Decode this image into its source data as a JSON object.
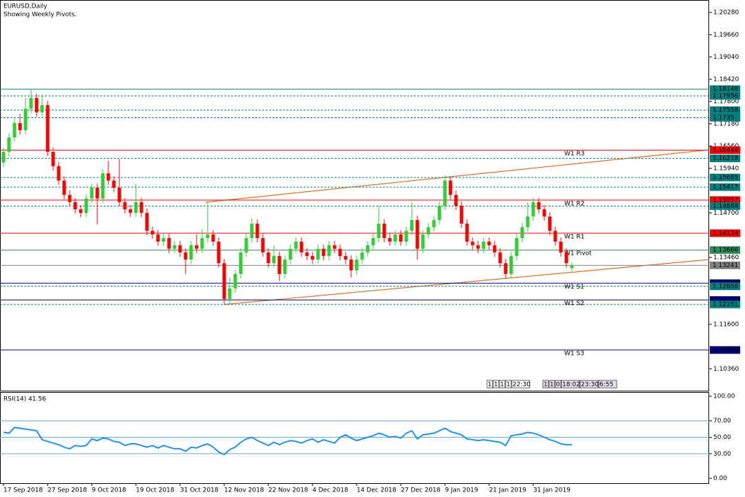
{
  "chart_data": [
    {
      "type": "candlestick",
      "title": "EURUSD,Daily",
      "subtitle": "Showing Weekly Pivots.",
      "categories": [
        "17 Sep 2018",
        null,
        null,
        null,
        null,
        null,
        null,
        null,
        "27 Sep 2018",
        null,
        null,
        null,
        null,
        null,
        null,
        null,
        "9 Oct 2018",
        null,
        null,
        null,
        null,
        null,
        null,
        null,
        "19 Oct 2018",
        null,
        null,
        null,
        null,
        null,
        null,
        null,
        "31 Oct 2018",
        null,
        null,
        null,
        null,
        null,
        null,
        null,
        "12 Nov 2018",
        null,
        null,
        null,
        null,
        null,
        null,
        null,
        "22 Nov 2018",
        null,
        null,
        null,
        null,
        null,
        null,
        null,
        "4 Dec 2018",
        null,
        null,
        null,
        null,
        null,
        null,
        null,
        "14 Dec 2018",
        null,
        null,
        null,
        null,
        null,
        null,
        null,
        "27 Dec 2018",
        null,
        null,
        null,
        null,
        null,
        null,
        null,
        "9 Jan 2019",
        null,
        null,
        null,
        null,
        null,
        null,
        null,
        "21 Jan 2019",
        null,
        null,
        null,
        null,
        null,
        null,
        null,
        "31 Jan 2019",
        null,
        null,
        null,
        null,
        null,
        null,
        null
      ],
      "open": [
        1.161,
        1.164,
        1.168,
        1.172,
        1.17,
        1.176,
        1.179,
        1.175,
        1.177,
        1.164,
        1.16,
        1.156,
        1.152,
        1.15,
        1.148,
        1.147,
        1.151,
        1.154,
        1.151,
        1.158,
        1.156,
        1.154,
        1.15,
        1.148,
        1.147,
        1.15,
        1.147,
        1.142,
        1.141,
        1.139,
        1.14,
        1.137,
        1.138,
        1.136,
        1.134,
        1.138,
        1.137,
        1.14,
        1.141,
        1.139,
        1.133,
        1.123,
        1.126,
        1.13,
        1.136,
        1.14,
        1.144,
        1.14,
        1.136,
        1.133,
        1.135,
        1.13,
        1.134,
        1.137,
        1.139,
        1.136,
        1.135,
        1.134,
        1.137,
        1.135,
        1.138,
        1.137,
        1.135,
        1.134,
        1.131,
        1.134,
        1.136,
        1.138,
        1.14,
        1.144,
        1.14,
        1.139,
        1.141,
        1.139,
        1.142,
        1.145,
        1.137,
        1.141,
        1.143,
        1.145,
        1.149,
        1.156,
        1.152,
        1.149,
        1.144,
        1.139,
        1.138,
        1.137,
        1.139,
        1.138,
        1.136,
        1.133,
        1.13,
        1.135,
        1.14,
        1.143,
        1.146,
        1.15,
        1.148,
        1.146,
        1.142,
        1.139,
        1.136,
        1.1316
      ],
      "high": [
        1.1652,
        1.1692,
        1.1732,
        1.1745,
        1.179,
        1.1815,
        1.1802,
        1.18,
        1.1782,
        1.1652,
        1.1612,
        1.1572,
        1.1532,
        1.1512,
        1.1492,
        1.1522,
        1.1552,
        1.1552,
        1.1592,
        1.1615,
        1.1572,
        1.162,
        1.1512,
        1.1492,
        1.155,
        1.1512,
        1.1482,
        1.1432,
        1.1422,
        1.1412,
        1.1412,
        1.1392,
        1.1392,
        1.1372,
        1.1392,
        1.141,
        1.1425,
        1.15,
        1.1422,
        1.1402,
        1.1342,
        1.129,
        1.1312,
        1.1372,
        1.1412,
        1.1455,
        1.1452,
        1.1412,
        1.1372,
        1.138,
        1.1362,
        1.1352,
        1.1382,
        1.1402,
        1.1402,
        1.1372,
        1.1362,
        1.1382,
        1.1382,
        1.1392,
        1.1392,
        1.1382,
        1.1362,
        1.1352,
        1.1352,
        1.1372,
        1.1392,
        1.1412,
        1.149,
        1.1452,
        1.1412,
        1.1422,
        1.1422,
        1.1432,
        1.15,
        1.1462,
        1.1422,
        1.1442,
        1.1462,
        1.1502,
        1.1575,
        1.1572,
        1.1532,
        1.1502,
        1.1452,
        1.1402,
        1.1392,
        1.1402,
        1.1402,
        1.1392,
        1.1372,
        1.1342,
        1.1362,
        1.1412,
        1.1442,
        1.15,
        1.1512,
        1.1512,
        1.1492,
        1.1472,
        1.1432,
        1.1402,
        1.1372,
        1.1332
      ],
      "low": [
        1.1598,
        1.1628,
        1.1668,
        1.1688,
        1.1688,
        1.1748,
        1.1738,
        1.1738,
        1.1628,
        1.1588,
        1.1548,
        1.1508,
        1.1488,
        1.1468,
        1.1458,
        1.1458,
        1.1498,
        1.1438,
        1.1498,
        1.1548,
        1.1528,
        1.1488,
        1.1468,
        1.1458,
        1.1458,
        1.1458,
        1.1408,
        1.1398,
        1.1378,
        1.1378,
        1.1358,
        1.1358,
        1.1348,
        1.13,
        1.1328,
        1.1358,
        1.1358,
        1.1388,
        1.1378,
        1.1318,
        1.1215,
        1.1215,
        1.1248,
        1.1288,
        1.1348,
        1.1388,
        1.1388,
        1.1348,
        1.1318,
        1.1318,
        1.128,
        1.1288,
        1.1328,
        1.1358,
        1.1348,
        1.1338,
        1.1328,
        1.1328,
        1.1338,
        1.1338,
        1.1358,
        1.1338,
        1.1328,
        1.129,
        1.1298,
        1.1328,
        1.1348,
        1.1368,
        1.1388,
        1.1388,
        1.1378,
        1.1378,
        1.1378,
        1.1378,
        1.1408,
        1.134,
        1.1358,
        1.1398,
        1.1418,
        1.1438,
        1.1478,
        1.1508,
        1.1478,
        1.1428,
        1.1378,
        1.1368,
        1.1358,
        1.1358,
        1.1368,
        1.1348,
        1.1318,
        1.1288,
        1.1288,
        1.1338,
        1.1388,
        1.1418,
        1.1448,
        1.1468,
        1.1448,
        1.1408,
        1.1378,
        1.1348,
        1.1318,
        1.1308
      ],
      "close": [
        1.164,
        1.168,
        1.172,
        1.17,
        1.176,
        1.179,
        1.175,
        1.177,
        1.164,
        1.16,
        1.156,
        1.152,
        1.15,
        1.148,
        1.147,
        1.151,
        1.154,
        1.151,
        1.158,
        1.156,
        1.154,
        1.15,
        1.148,
        1.147,
        1.15,
        1.147,
        1.142,
        1.141,
        1.139,
        1.14,
        1.137,
        1.138,
        1.136,
        1.134,
        1.138,
        1.137,
        1.14,
        1.141,
        1.139,
        1.133,
        1.123,
        1.126,
        1.13,
        1.136,
        1.14,
        1.144,
        1.14,
        1.136,
        1.133,
        1.135,
        1.13,
        1.134,
        1.137,
        1.139,
        1.136,
        1.135,
        1.134,
        1.137,
        1.135,
        1.138,
        1.137,
        1.135,
        1.134,
        1.131,
        1.134,
        1.136,
        1.138,
        1.14,
        1.144,
        1.14,
        1.139,
        1.141,
        1.139,
        1.142,
        1.145,
        1.137,
        1.141,
        1.143,
        1.145,
        1.149,
        1.156,
        1.152,
        1.149,
        1.144,
        1.139,
        1.138,
        1.137,
        1.139,
        1.138,
        1.136,
        1.133,
        1.13,
        1.135,
        1.14,
        1.143,
        1.146,
        1.15,
        1.148,
        1.146,
        1.142,
        1.139,
        1.136,
        1.133,
        1.1324
      ],
      "up_color": "#32cd32",
      "down_color": "#ff0000",
      "ylim": [
        1.0977,
        1.2053
      ],
      "yticks": [
        {
          "value": 1.2028,
          "label": "1.20280"
        },
        {
          "value": 1.1966,
          "label": "1.19660"
        },
        {
          "value": 1.1904,
          "label": "1.19040"
        },
        {
          "value": 1.1842,
          "label": "1.18420"
        },
        {
          "value": 1.178,
          "label": "1.17800"
        },
        {
          "value": 1.1718,
          "label": "1.17180"
        },
        {
          "value": 1.1656,
          "label": "1.16560"
        },
        {
          "value": 1.1594,
          "label": "1.15940"
        },
        {
          "value": 1.147,
          "label": "1.14700"
        },
        {
          "value": 1.1346,
          "label": "1.13460"
        },
        {
          "value": 1.116,
          "label": "1.11600"
        },
        {
          "value": 1.1036,
          "label": "1.10360"
        }
      ],
      "levels": [
        {
          "value": 1.18146,
          "color": "#008080",
          "dashed": false
        },
        {
          "value": 1.17956,
          "color": "#008080",
          "dashed": true
        },
        {
          "value": 1.17558,
          "color": "#008080",
          "dashed": true
        },
        {
          "value": 1.1735,
          "color": "#008080",
          "dashed": true
        },
        {
          "value": 1.16448,
          "color": "#ff0000",
          "dashed": false
        },
        {
          "value": 1.16218,
          "color": "#008080",
          "dashed": true
        },
        {
          "value": 1.15685,
          "color": "#008080",
          "dashed": true
        },
        {
          "value": 1.15417,
          "color": "#008080",
          "dashed": true
        },
        {
          "value": 1.15057,
          "color": "#ff0000",
          "dashed": false
        },
        {
          "value": 1.14888,
          "color": "#008080",
          "dashed": true
        },
        {
          "value": 1.14134,
          "color": "#ff0000",
          "dashed": false
        },
        {
          "value": 1.13666,
          "color": "#2e8b57",
          "dashed": false
        },
        {
          "value": 1.13241,
          "color": "#808080",
          "dashed": false
        },
        {
          "value": 1.12743,
          "color": "#000080",
          "dashed": false
        },
        {
          "value": 1.12656,
          "color": "#008080",
          "dashed": true
        },
        {
          "value": 1.12275,
          "color": "#000080",
          "dashed": false
        },
        {
          "value": 1.12151,
          "color": "#008080",
          "dashed": true
        },
        {
          "value": 1.10884,
          "color": "#000080",
          "dashed": false
        }
      ],
      "pivots": [
        {
          "name": "W1 R3",
          "value": 1.16448
        },
        {
          "name": "W1 R2",
          "value": 1.15057
        },
        {
          "name": "W1 R1",
          "value": 1.14134
        },
        {
          "name": "W1 Pivot",
          "value": 1.13666
        },
        {
          "name": "W1 S1",
          "value": 1.12743
        },
        {
          "name": "W1 S2",
          "value": 1.12275
        },
        {
          "name": "W1 S3",
          "value": 1.10884
        }
      ]
    },
    {
      "type": "line",
      "title": "RSI(14) 41.56",
      "color": "#1e90ff",
      "values": [
        56,
        55,
        62,
        61,
        60,
        59,
        58,
        47,
        45,
        43,
        41,
        38,
        36,
        40,
        39,
        40,
        48,
        46,
        49,
        48,
        45,
        44,
        40,
        42,
        42,
        40,
        38,
        40,
        37,
        40,
        38,
        36,
        36,
        33,
        38,
        37,
        40,
        42,
        38,
        32,
        29,
        35,
        38,
        44,
        48,
        50,
        46,
        43,
        40,
        44,
        41,
        44,
        46,
        45,
        43,
        46,
        48,
        44,
        47,
        45,
        43,
        50,
        53,
        49,
        46,
        48,
        50,
        52,
        55,
        53,
        50,
        51,
        49,
        55,
        58,
        48,
        53,
        54,
        55,
        58,
        61,
        57,
        55,
        53,
        48,
        47,
        46,
        47,
        46,
        45,
        44,
        40,
        52,
        53,
        54,
        56,
        55,
        53,
        50,
        47,
        45,
        42,
        41,
        41
      ],
      "ylim": [
        0,
        100
      ],
      "yticks": [
        {
          "value": 100,
          "label": "100.00"
        },
        {
          "value": 70,
          "label": "70.00"
        },
        {
          "value": 50,
          "label": "50.00"
        },
        {
          "value": 30,
          "label": "30.00"
        },
        {
          "value": 0,
          "label": "0.00"
        }
      ],
      "levels": [
        70,
        50,
        30
      ],
      "level_color": "#5fb0d8"
    }
  ],
  "status_boxes": [
    [
      "1",
      "1",
      "1",
      "1",
      "22:30"
    ],
    [
      "1",
      "1",
      "0",
      "18:02",
      "23:30",
      "6:55"
    ]
  ]
}
